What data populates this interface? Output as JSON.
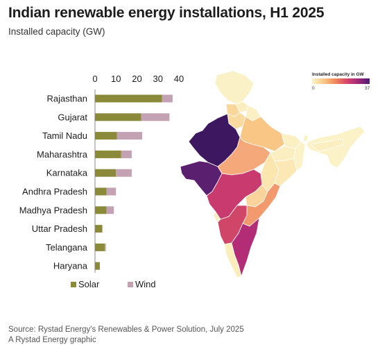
{
  "header": {
    "title": "Indian renewable energy installations, H1 2025",
    "subtitle": "Installed capacity (GW)"
  },
  "footer": {
    "source": "Source: Rystad Energy's Renewables & Power Solution, July 2025",
    "credit": "A Rystad Energy graphic"
  },
  "colors": {
    "solar": "#8b8a3a",
    "wind": "#c3a2b4"
  },
  "chart_data": {
    "type": "bar",
    "orientation": "horizontal",
    "stacked": true,
    "categories": [
      "Rajasthan",
      "Gujarat",
      "Tamil Nadu",
      "Maharashtra",
      "Karnataka",
      "Andhra Pradesh",
      "Madhya Pradesh",
      "Uttar Pradesh",
      "Telangana",
      "Haryana"
    ],
    "series": [
      {
        "name": "Solar",
        "values": [
          32,
          22,
          10.5,
          12.5,
          10,
          5.5,
          5.5,
          3.5,
          4.7,
          2.3
        ]
      },
      {
        "name": "Wind",
        "values": [
          5,
          13.5,
          12,
          5,
          7.5,
          4.5,
          3.5,
          0,
          0.5,
          0
        ]
      }
    ],
    "xlim": [
      0,
      40
    ],
    "xticks": [
      0,
      10,
      20,
      30,
      40
    ],
    "tick_labels": [
      "0",
      "10",
      "20",
      "30",
      "40"
    ],
    "legend_position": "bottom",
    "grid": false
  },
  "map": {
    "colorbar_title": "Installed capacity in GW",
    "colorbar_min_label": "0",
    "colorbar_max_label": "37",
    "colorbar_stops": [
      "#fbf4c8",
      "#f9c98a",
      "#f08a5a",
      "#d8466a",
      "#a0287a",
      "#4b1c6b"
    ]
  }
}
